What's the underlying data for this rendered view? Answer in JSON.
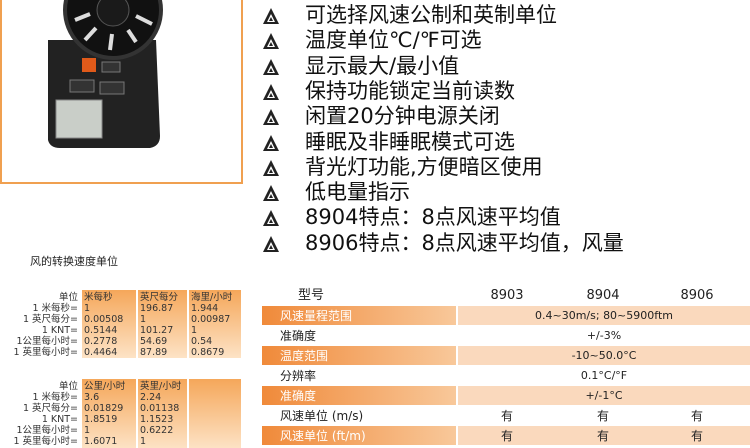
{
  "features": [
    "可选择风速公制和英制单位",
    "温度单位℃/℉可选",
    "显示最大/最小值",
    "保持功能锁定当前读数",
    "闲置20分钟电源关闭",
    "睡眠及非睡眠模式可选",
    "背光灯功能,方便暗区使用",
    "低电量指示",
    "8904特点：8点风速平均值",
    "8906特点：8点风速平均值，风量"
  ],
  "conversion_title": "风的转换速度单位",
  "conversion_tables": [
    {
      "columns": [
        "单位",
        "米每秒",
        "英尺每分",
        "海里/小时"
      ],
      "rows": [
        [
          "1 米每秒=",
          "1",
          "196.87",
          "1.944"
        ],
        [
          "1 英尺每分=",
          "0.00508",
          "1",
          "0.00987"
        ],
        [
          "1 KNT=",
          "0.5144",
          "101.27",
          "1"
        ],
        [
          "1公里每小时=",
          "0.2778",
          "54.69",
          "0.54"
        ],
        [
          "1 英里每小时=",
          "0.4464",
          "87.89",
          "0.8679"
        ]
      ]
    },
    {
      "columns": [
        "单位",
        "公里/小时",
        "英里/小时"
      ],
      "rows": [
        [
          "1 米每秒=",
          "3.6",
          "2.24"
        ],
        [
          "1 英尺每分=",
          "0.01829",
          "0.01138"
        ],
        [
          "1 KNT=",
          "1.8519",
          "1.1523"
        ],
        [
          "1公里每小时=",
          "1",
          "0.6222"
        ],
        [
          "1 英里每小时=",
          "1.6071",
          "1"
        ]
      ]
    }
  ],
  "spec_table": {
    "header": [
      "型号",
      "8903",
      "8904",
      "8906"
    ],
    "rows": [
      [
        "风速量程范围",
        "0.4~30m/s; 80~5900ftm"
      ],
      [
        "准确度",
        "+/-3%"
      ],
      [
        "温度范围",
        "-10~50.0°C"
      ],
      [
        "分辨率",
        "0.1°C/°F"
      ],
      [
        "准确度",
        "+/-1°C"
      ],
      [
        "风速单位 (m/s)",
        "有",
        "有",
        "有"
      ],
      [
        "风速单位 (ft/m)",
        "有",
        "有",
        "有"
      ]
    ]
  }
}
